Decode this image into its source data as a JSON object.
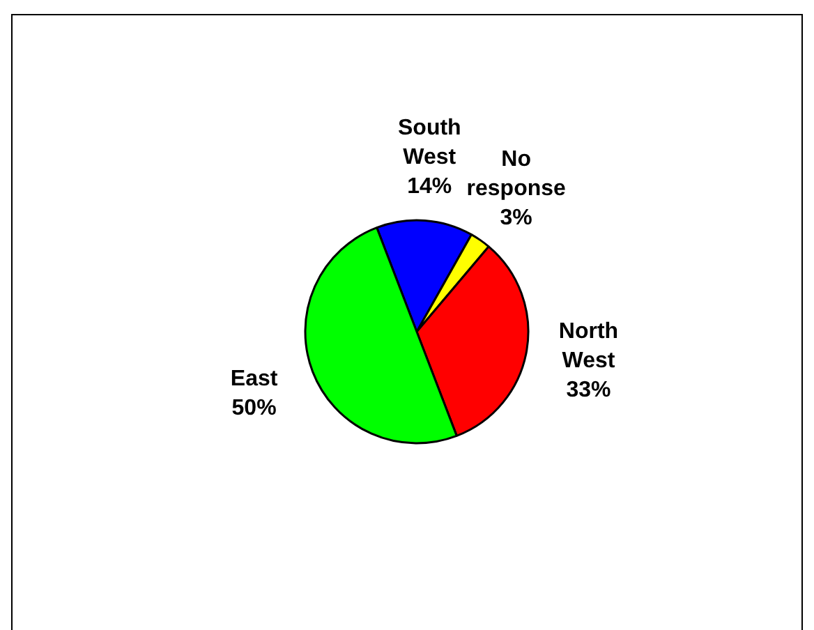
{
  "chart_data": {
    "type": "pie",
    "categories": [
      "South West",
      "No response",
      "North West",
      "East"
    ],
    "values": [
      14,
      3,
      33,
      50
    ],
    "colors": [
      "#0000ff",
      "#ffff00",
      "#ff0000",
      "#00ff00"
    ],
    "value_labels": [
      "14%",
      "3%",
      "33%",
      "50%"
    ],
    "legend": false
  }
}
